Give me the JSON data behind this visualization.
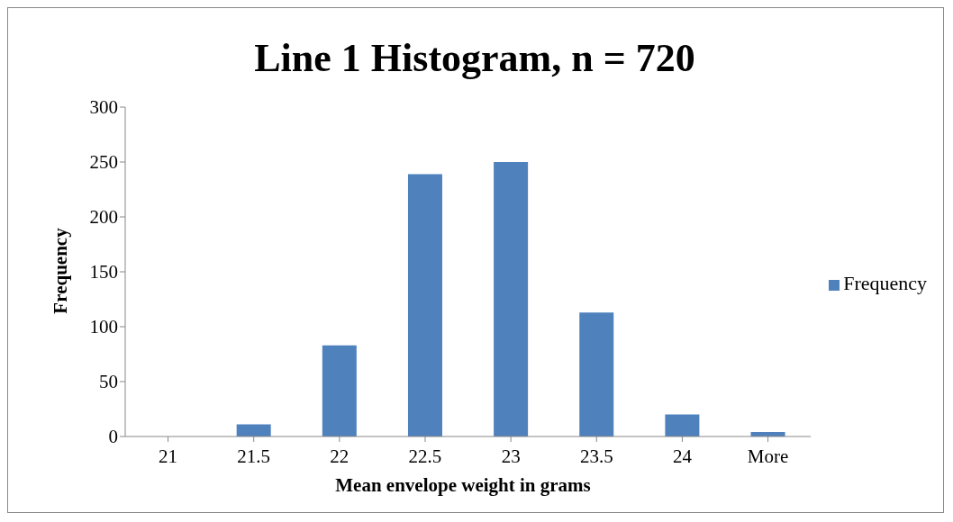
{
  "chart_data": {
    "type": "bar",
    "title": "Line 1 Histogram, n = 720",
    "xlabel": "Mean envelope weight in grams",
    "ylabel": "Frequency",
    "categories": [
      "21",
      "21.5",
      "22",
      "22.5",
      "23",
      "23.5",
      "24",
      "More"
    ],
    "series": [
      {
        "name": "Frequency",
        "color": "#4f81bd",
        "values": [
          0,
          11,
          83,
          239,
          250,
          113,
          20,
          4
        ]
      }
    ],
    "ylim": [
      0,
      300
    ],
    "yticks": [
      0,
      50,
      100,
      150,
      200,
      250,
      300
    ],
    "grid": false,
    "legend": "right"
  }
}
